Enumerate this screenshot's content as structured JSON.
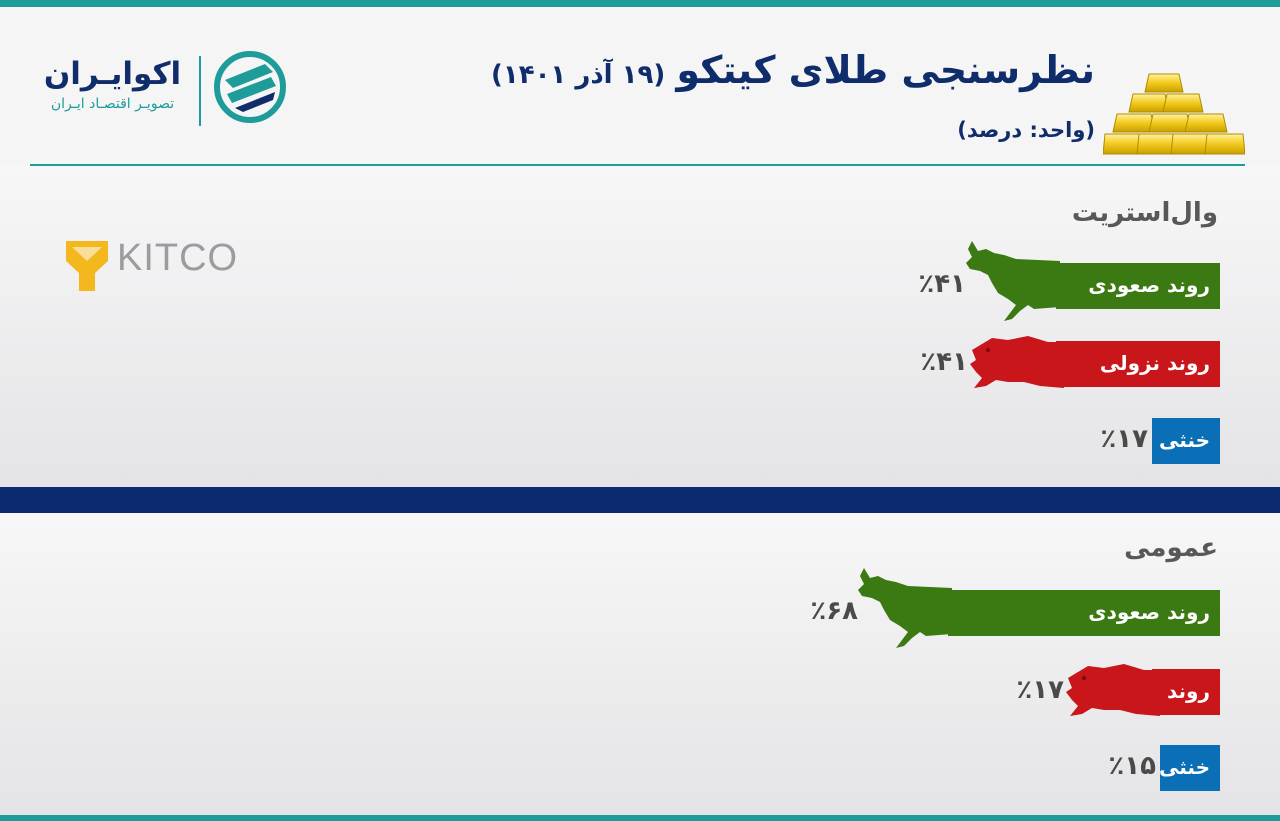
{
  "header": {
    "title": "نظرسنجی طلای کیتکو",
    "date": "(۱۹ آذر ۱۴۰۱)",
    "unit": "(واحد: درصد)"
  },
  "brand": {
    "name": "اکوایـران",
    "tagline": "تصویـر اقتصـاد ایـران",
    "source_logo": "KITCO"
  },
  "colors": {
    "accent": "#1d9c9a",
    "navy": "#0f2c6b",
    "bullish": "#3b7a12",
    "bearish": "#c8161b",
    "neutral": "#0a6fb7"
  },
  "icons": [
    "bull-icon",
    "bear-icon",
    "gold-bars-icon",
    "kitco-logo-icon",
    "ecoiran-logo-icon"
  ],
  "chart_data": [
    {
      "type": "bar",
      "orientation": "horizontal",
      "title": "وال‌استریت",
      "categories": [
        "روند صعودی",
        "روند نزولی",
        "خنثی"
      ],
      "values": [
        41,
        41,
        17
      ],
      "value_labels": [
        "٪۴۱",
        "٪۴۱",
        "٪۱۷"
      ],
      "colors": [
        "#3b7a12",
        "#c8161b",
        "#0a6fb7"
      ],
      "icons": [
        "bull-icon",
        "bear-icon",
        null
      ]
    },
    {
      "type": "bar",
      "orientation": "horizontal",
      "title": "عمومی",
      "categories": [
        "روند صعودی",
        "روند نزولی",
        "خنثی"
      ],
      "values": [
        68,
        17,
        15
      ],
      "value_labels": [
        "٪۶۸",
        "٪۱۷",
        "٪۱۵"
      ],
      "colors": [
        "#3b7a12",
        "#c8161b",
        "#0a6fb7"
      ],
      "icons": [
        "bull-icon",
        "bear-icon",
        null
      ]
    }
  ]
}
